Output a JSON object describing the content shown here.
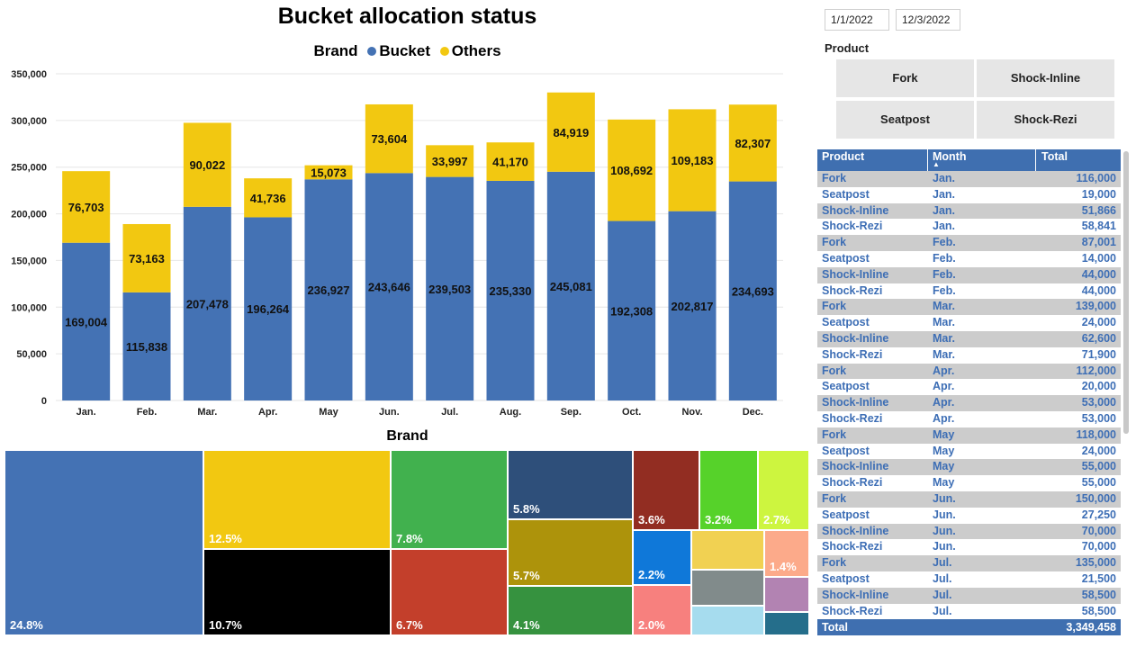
{
  "title": "Bucket allocation status",
  "legend": {
    "label": "Brand",
    "items": [
      {
        "name": "Bucket",
        "color": "#4472b4"
      },
      {
        "name": "Others",
        "color": "#f2c811"
      }
    ]
  },
  "chart_data": {
    "type": "bar",
    "stacked": true,
    "categories": [
      "Jan.",
      "Feb.",
      "Mar.",
      "Apr.",
      "May",
      "Jun.",
      "Jul.",
      "Aug.",
      "Sep.",
      "Oct.",
      "Nov.",
      "Dec."
    ],
    "series": [
      {
        "name": "Bucket",
        "color": "#4472b4",
        "values": [
          169004,
          115838,
          207478,
          196264,
          236927,
          243646,
          239503,
          235330,
          245081,
          192308,
          202817,
          234693
        ]
      },
      {
        "name": "Others",
        "color": "#f2c811",
        "values": [
          76703,
          73163,
          90022,
          41736,
          15073,
          73604,
          33997,
          41170,
          84919,
          108692,
          109183,
          82307
        ]
      }
    ],
    "data_labels": {
      "Bucket": [
        "169,004",
        "115,838",
        "207,478",
        "196,264",
        "236,927",
        "243,646",
        "239,503",
        "235,330",
        "245,081",
        "192,308",
        "202,817",
        "234,693"
      ],
      "Others": [
        "76,703",
        "73,163",
        "90,022",
        "41,736",
        "15,073",
        "73,604",
        "33,997",
        "41,170",
        "84,919",
        "108,692",
        "109,183",
        "82,307"
      ]
    },
    "ylim": [
      0,
      350000
    ],
    "yticks": [
      "0",
      "50,000",
      "100,000",
      "150,000",
      "200,000",
      "250,000",
      "300,000",
      "350,000"
    ],
    "grid": true,
    "legend_position": "top"
  },
  "treemap": {
    "title": "Brand",
    "tiles": [
      {
        "label": "24.8%",
        "color": "#4472b4"
      },
      {
        "label": "12.5%",
        "color": "#f2c811"
      },
      {
        "label": "10.7%",
        "color": "#000000"
      },
      {
        "label": "7.8%",
        "color": "#41b14e"
      },
      {
        "label": "6.7%",
        "color": "#c33f2b"
      },
      {
        "label": "5.8%",
        "color": "#2e4f7a"
      },
      {
        "label": "5.7%",
        "color": "#ad930b"
      },
      {
        "label": "4.1%",
        "color": "#36923f"
      },
      {
        "label": "3.6%",
        "color": "#922d22"
      },
      {
        "label": "3.2%",
        "color": "#56d22a"
      },
      {
        "label": "2.7%",
        "color": "#cdf53f"
      },
      {
        "label": "2.2%",
        "color": "#0f78d9"
      },
      {
        "label": "2.0%",
        "color": "#f7807e"
      },
      {
        "label": "",
        "color": "#f1d152"
      },
      {
        "label": "",
        "color": "#818b8b"
      },
      {
        "label": "",
        "color": "#a6dcee"
      },
      {
        "label": "1.4%",
        "color": "#fcaa8a"
      },
      {
        "label": "",
        "color": "#b283b2"
      },
      {
        "label": "",
        "color": "#256e8b"
      }
    ]
  },
  "filters": {
    "start_date": "1/1/2022",
    "end_date": "12/3/2022",
    "product_label": "Product",
    "products": [
      "Fork",
      "Shock-Inline",
      "Seatpost",
      "Shock-Rezi"
    ]
  },
  "table": {
    "headers": [
      "Product",
      "Month",
      "Total"
    ],
    "sort_indicator": "▲",
    "rows": [
      [
        "Fork",
        "Jan.",
        "116,000"
      ],
      [
        "Seatpost",
        "Jan.",
        "19,000"
      ],
      [
        "Shock-Inline",
        "Jan.",
        "51,866"
      ],
      [
        "Shock-Rezi",
        "Jan.",
        "58,841"
      ],
      [
        "Fork",
        "Feb.",
        "87,001"
      ],
      [
        "Seatpost",
        "Feb.",
        "14,000"
      ],
      [
        "Shock-Inline",
        "Feb.",
        "44,000"
      ],
      [
        "Shock-Rezi",
        "Feb.",
        "44,000"
      ],
      [
        "Fork",
        "Mar.",
        "139,000"
      ],
      [
        "Seatpost",
        "Mar.",
        "24,000"
      ],
      [
        "Shock-Inline",
        "Mar.",
        "62,600"
      ],
      [
        "Shock-Rezi",
        "Mar.",
        "71,900"
      ],
      [
        "Fork",
        "Apr.",
        "112,000"
      ],
      [
        "Seatpost",
        "Apr.",
        "20,000"
      ],
      [
        "Shock-Inline",
        "Apr.",
        "53,000"
      ],
      [
        "Shock-Rezi",
        "Apr.",
        "53,000"
      ],
      [
        "Fork",
        "May",
        "118,000"
      ],
      [
        "Seatpost",
        "May",
        "24,000"
      ],
      [
        "Shock-Inline",
        "May",
        "55,000"
      ],
      [
        "Shock-Rezi",
        "May",
        "55,000"
      ],
      [
        "Fork",
        "Jun.",
        "150,000"
      ],
      [
        "Seatpost",
        "Jun.",
        "27,250"
      ],
      [
        "Shock-Inline",
        "Jun.",
        "70,000"
      ],
      [
        "Shock-Rezi",
        "Jun.",
        "70,000"
      ],
      [
        "Fork",
        "Jul.",
        "135,000"
      ],
      [
        "Seatpost",
        "Jul.",
        "21,500"
      ],
      [
        "Shock-Inline",
        "Jul.",
        "58,500"
      ],
      [
        "Shock-Rezi",
        "Jul.",
        "58,500"
      ]
    ],
    "total_label": "Total",
    "total_value": "3,349,458"
  }
}
